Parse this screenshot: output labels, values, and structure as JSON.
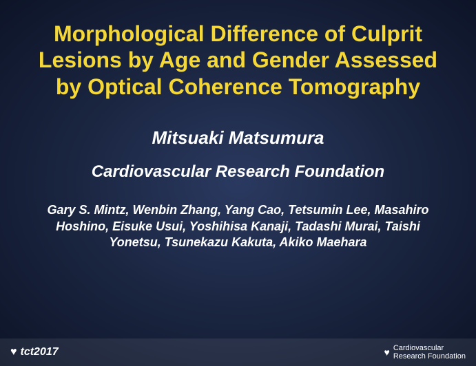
{
  "slide": {
    "title": "Morphological Difference of Culprit Lesions by Age and Gender Assessed by Optical Coherence Tomography",
    "presenter": "Mitsuaki Matsumura",
    "affiliation": "Cardiovascular Research Foundation",
    "coauthors": "Gary S. Mintz, Wenbin Zhang, Yang Cao, Tetsumin Lee, Masahiro Hoshino, Eisuke Usui, Yoshihisa Kanaji, Tadashi Murai, Taishi Yonetsu, Tsunekazu Kakuta, Akiko Maehara"
  },
  "footer": {
    "conference": "tct2017",
    "organization_line1": "Cardiovascular",
    "organization_line2": "Research Foundation"
  },
  "colors": {
    "title_color": "#f5d835",
    "text_color": "#ffffff",
    "bg_center": "#2a3960",
    "bg_mid": "#1a2540",
    "bg_edge": "#0d1428"
  },
  "typography": {
    "title_fontsize": 32,
    "presenter_fontsize": 26,
    "affiliation_fontsize": 24,
    "coauthors_fontsize": 18,
    "font_family": "Arial"
  }
}
